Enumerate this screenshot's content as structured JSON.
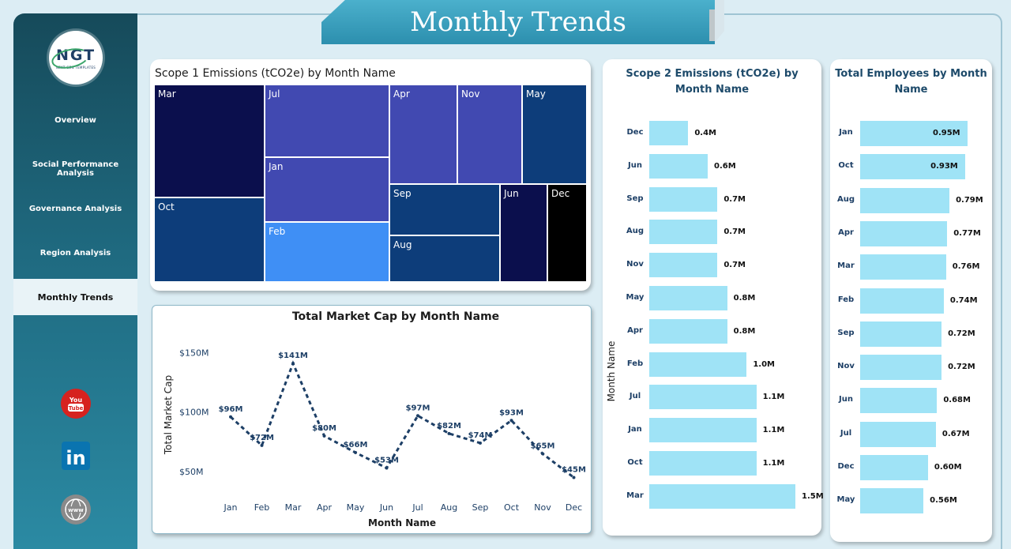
{
  "header": {
    "title": "Monthly Trends"
  },
  "logo": {
    "mark": "NGT",
    "tagline": "NEXT GEN TEMPLATES"
  },
  "sidebar": {
    "items": [
      {
        "label": "Overview",
        "active": false
      },
      {
        "label": "Social Performance Analysis",
        "active": false
      },
      {
        "label": "Governance Analysis",
        "active": false
      },
      {
        "label": "Region Analysis",
        "active": false
      },
      {
        "label": "Monthly Trends",
        "active": true
      }
    ],
    "social": [
      {
        "icon": "youtube-icon",
        "label": "You Tube",
        "color": "#d6221f"
      },
      {
        "icon": "linkedin-icon",
        "label": "in",
        "color": "#0a74b0"
      },
      {
        "icon": "globe-icon",
        "label": "www",
        "color": "#7d7d7d"
      }
    ]
  },
  "scope1": {
    "title": "Scope 1 Emissions (tCO2e) by Month Name",
    "cells": [
      {
        "label": "Mar",
        "color": "#0b0f4d"
      },
      {
        "label": "Oct",
        "color": "#0d3d7a"
      },
      {
        "label": "Jul",
        "color": "#4149b1"
      },
      {
        "label": "Jan",
        "color": "#4149b1"
      },
      {
        "label": "Feb",
        "color": "#3f8ff5"
      },
      {
        "label": "Apr",
        "color": "#4149b1"
      },
      {
        "label": "Nov",
        "color": "#4149b1"
      },
      {
        "label": "May",
        "color": "#0d3d7a"
      },
      {
        "label": "Sep",
        "color": "#0d3d7a"
      },
      {
        "label": "Aug",
        "color": "#0d3d7a"
      },
      {
        "label": "Jun",
        "color": "#0b0f4d"
      },
      {
        "label": "Dec",
        "color": "#000000"
      }
    ]
  },
  "market_cap": {
    "title": "Total Market Cap by Month Name",
    "xlabel": "Month Name",
    "ylabel": "Total Market Cap",
    "yticks": [
      "$150M",
      "$100M",
      "$50M"
    ],
    "line_color": "#1d3f66"
  },
  "scope2": {
    "title": "Scope 2 Emissions (tCO2e) by Month Name",
    "axis_label": "Month Name",
    "bar_color": "#9fe3f6"
  },
  "employees": {
    "title": "Total Employees by Month Name",
    "bar_color": "#9fe3f6"
  },
  "chart_data": [
    {
      "type": "treemap",
      "title": "Scope 1 Emissions (tCO2e) by Month Name",
      "categories": [
        "Mar",
        "Oct",
        "Jul",
        "Jan",
        "Feb",
        "Apr",
        "Nov",
        "May",
        "Sep",
        "Aug",
        "Jun",
        "Dec"
      ]
    },
    {
      "type": "line",
      "title": "Total Market Cap by Month Name",
      "xlabel": "Month Name",
      "ylabel": "Total Market Cap",
      "categories": [
        "Jan",
        "Feb",
        "Mar",
        "Apr",
        "May",
        "Jun",
        "Jul",
        "Aug",
        "Sep",
        "Oct",
        "Nov",
        "Dec"
      ],
      "values": [
        96,
        72,
        141,
        80,
        66,
        53,
        97,
        82,
        74,
        93,
        65,
        45
      ],
      "labels": [
        "$96M",
        "$72M",
        "$141M",
        "$80M",
        "$66M",
        "$53M",
        "$97M",
        "$82M",
        "$74M",
        "$93M",
        "$65M",
        "$45M"
      ],
      "ylim": [
        40,
        155
      ],
      "ytick_values": [
        150,
        100,
        50
      ]
    },
    {
      "type": "bar",
      "title": "Scope 2 Emissions (tCO2e) by Month Name",
      "ylabel": "Month Name",
      "categories": [
        "Dec",
        "Jun",
        "Sep",
        "Aug",
        "Nov",
        "May",
        "Apr",
        "Feb",
        "Jul",
        "Jan",
        "Oct",
        "Mar"
      ],
      "values": [
        0.4,
        0.6,
        0.7,
        0.7,
        0.7,
        0.8,
        0.8,
        1.0,
        1.1,
        1.1,
        1.1,
        1.5
      ],
      "labels": [
        "0.4M",
        "0.6M",
        "0.7M",
        "0.7M",
        "0.7M",
        "0.8M",
        "0.8M",
        "1.0M",
        "1.1M",
        "1.1M",
        "1.1M",
        "1.5M"
      ]
    },
    {
      "type": "bar",
      "title": "Total Employees by Month Name",
      "categories": [
        "Jan",
        "Oct",
        "Aug",
        "Apr",
        "Mar",
        "Feb",
        "Sep",
        "Nov",
        "Jun",
        "Jul",
        "Dec",
        "May"
      ],
      "values": [
        0.95,
        0.93,
        0.79,
        0.77,
        0.76,
        0.74,
        0.72,
        0.72,
        0.68,
        0.67,
        0.6,
        0.56
      ],
      "labels": [
        "0.95M",
        "0.93M",
        "0.79M",
        "0.77M",
        "0.76M",
        "0.74M",
        "0.72M",
        "0.72M",
        "0.68M",
        "0.67M",
        "0.60M",
        "0.56M"
      ]
    }
  ]
}
